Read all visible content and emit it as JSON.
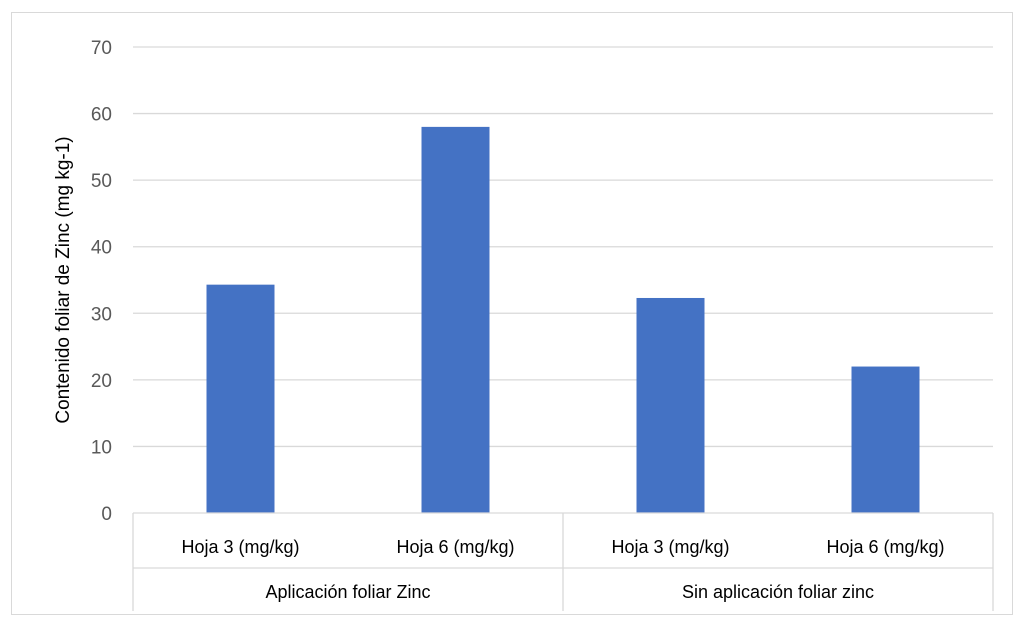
{
  "chart_data": {
    "type": "bar",
    "title": "",
    "xlabel": "",
    "ylabel": "Contenido foliar de Zinc  (mg kg-1)",
    "ylim": [
      0,
      70
    ],
    "yticks": [
      0,
      10,
      20,
      30,
      40,
      50,
      60,
      70
    ],
    "grid": true,
    "legend": "none",
    "bar_color": "#4472C4",
    "groups": [
      {
        "label": "Aplicación foliar Zinc",
        "categories": [
          "Hoja 3 (mg/kg)",
          "Hoja 6 (mg/kg)"
        ]
      },
      {
        "label": "Sin aplicación foliar zinc",
        "categories": [
          "Hoja 3 (mg/kg)",
          "Hoja 6 (mg/kg)"
        ]
      }
    ],
    "categories": [
      "Hoja 3 (mg/kg)",
      "Hoja 6 (mg/kg)",
      "Hoja 3 (mg/kg)",
      "Hoja 6 (mg/kg)"
    ],
    "values": [
      34.3,
      58.0,
      32.3,
      22.0
    ]
  }
}
